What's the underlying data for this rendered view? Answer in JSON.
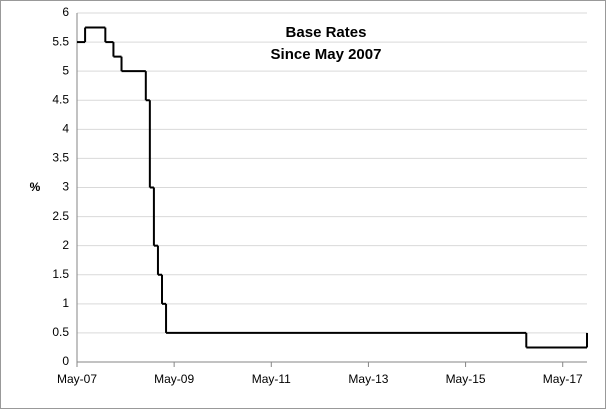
{
  "chart_data": {
    "type": "step",
    "title": "Base Rates",
    "subtitle": "Since May 2007",
    "y_label": "%",
    "x": [
      "2007-05",
      "2007-07",
      "2007-12",
      "2008-02",
      "2008-04",
      "2008-10",
      "2008-11",
      "2008-12",
      "2009-01",
      "2009-02",
      "2009-03",
      "2016-08",
      "2017-11"
    ],
    "values": [
      5.5,
      5.75,
      5.5,
      5.25,
      5,
      4.5,
      3,
      2,
      1.5,
      1,
      0.5,
      0.25,
      0.5
    ],
    "color": "#000000",
    "xlim": [
      "2007-05",
      "2017-11"
    ],
    "xticks": [
      {
        "value": "2007-05",
        "label": "May-07"
      },
      {
        "value": "2009-05",
        "label": "May-09"
      },
      {
        "value": "2011-05",
        "label": "May-11"
      },
      {
        "value": "2013-05",
        "label": "May-13"
      },
      {
        "value": "2015-05",
        "label": "May-15"
      },
      {
        "value": "2017-05",
        "label": "May-17"
      }
    ],
    "ylim": [
      0,
      6
    ],
    "yticks": [
      0,
      0.5,
      1,
      1.5,
      2,
      2.5,
      3,
      3.5,
      4,
      4.5,
      5,
      5.5,
      6
    ],
    "grid": true
  }
}
